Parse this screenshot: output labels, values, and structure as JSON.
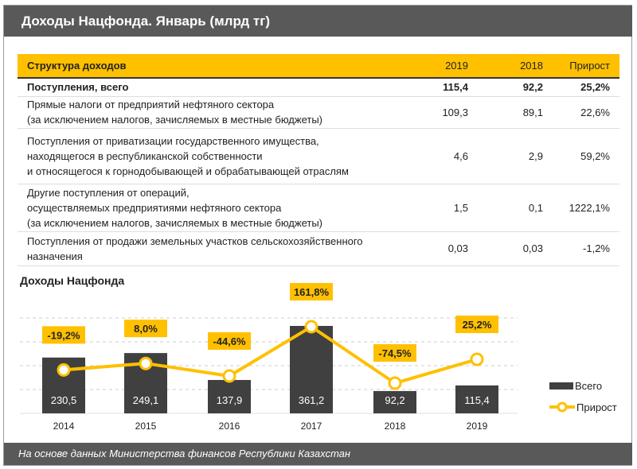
{
  "header": {
    "title": "Доходы Нацфонда. Январь (млрд тг)"
  },
  "table": {
    "columns": [
      "Структура доходов",
      "2019",
      "2018",
      "Прирост"
    ],
    "rows": [
      {
        "label": "Поступления, всего",
        "v2019": "115,4",
        "v2018": "92,2",
        "growth": "25,2%",
        "bold": true
      },
      {
        "label": "Прямые налоги от предприятий нефтяного сектора\n(за исключением налогов, зачисляемых в местные бюджеты)",
        "v2019": "109,3",
        "v2018": "89,1",
        "growth": "22,6%"
      },
      {
        "label": "Поступления от приватизации государственного имущества,\nнаходящегося в республиканской собственности\nи относящегося к горнодобывающей и обрабатывающей отраслям",
        "v2019": "4,6",
        "v2018": "2,9",
        "growth": "59,2%"
      },
      {
        "label": "Другие поступления от операций,\nосуществляемых предприятиями нефтяного сектора\n(за исключением налогов, зачисляемых в местные бюджеты)",
        "v2019": "1,5",
        "v2018": "0,1",
        "growth": "1222,1%"
      },
      {
        "label": "Поступления от продажи земельных участков сельскохозяйственного\nназначения",
        "v2019": "0,03",
        "v2018": "0,03",
        "growth": "-1,2%"
      }
    ]
  },
  "chart_data": {
    "type": "bar+line",
    "title": "Доходы Нацфонда",
    "categories": [
      "2014",
      "2015",
      "2016",
      "2017",
      "2018",
      "2019"
    ],
    "series": [
      {
        "name": "Всего",
        "type": "bar",
        "values": [
          230.5,
          249.1,
          137.9,
          361.2,
          92.2,
          115.4
        ],
        "labels": [
          "230,5",
          "249,1",
          "137,9",
          "361,2",
          "92,2",
          "115,4"
        ],
        "color": "#404040"
      },
      {
        "name": "Прирост",
        "type": "line",
        "values": [
          -19.2,
          8.0,
          -44.6,
          161.8,
          -74.5,
          25.2
        ],
        "labels": [
          "-19,2%",
          "8,0%",
          "-44,6%",
          "161,8%",
          "-74,5%",
          "25,2%"
        ],
        "color": "#ffc000"
      }
    ],
    "grid": true,
    "legend": "right"
  },
  "footer": {
    "source": "На основе данных Министерства финансов Республики Казахстан"
  }
}
